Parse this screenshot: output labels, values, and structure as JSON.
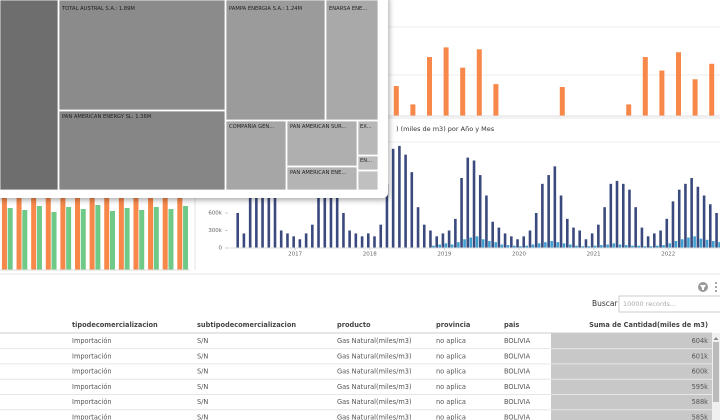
{
  "chart_data": [
    {
      "type": "bar",
      "categories": [
        null,
        null,
        null,
        null,
        null,
        null,
        null,
        null,
        null,
        null,
        null,
        null,
        null,
        null,
        null,
        null,
        null,
        null,
        null,
        null
      ],
      "series": [
        {
          "color": "#f7884a",
          "values": [
            31,
            12,
            61,
            71,
            50,
            69,
            33,
            0,
            0,
            0,
            30,
            0,
            0,
            0,
            12,
            61,
            47,
            66,
            38,
            54
          ]
        }
      ],
      "ylim": [
        0,
        120
      ]
    },
    {
      "type": "bar",
      "categories": [
        null,
        null,
        null,
        null,
        null,
        null,
        null,
        null,
        null,
        null,
        null,
        null,
        null
      ],
      "series": [
        {
          "color": "#f7884a",
          "values": [
            72,
            72,
            72,
            72,
            72,
            72,
            72,
            72,
            72,
            72,
            72,
            72,
            72
          ]
        },
        {
          "color": "#6fc987",
          "values": [
            62,
            60,
            64,
            58,
            63,
            61,
            65,
            59,
            62,
            60,
            63,
            61,
            64
          ]
        }
      ],
      "ylim": [
        0,
        72
      ]
    },
    {
      "type": "bar",
      "title": ") (miles de m3) por Año y Mes",
      "x": [
        2016.25,
        2016.333,
        2016.417,
        2016.5,
        2016.583,
        2016.667,
        2016.75,
        2016.833,
        2016.917,
        2017,
        2017.083,
        2017.167,
        2017.25,
        2017.333,
        2017.417,
        2017.5,
        2017.583,
        2017.667,
        2017.75,
        2017.833,
        2017.917,
        2018,
        2018.083,
        2018.167,
        2018.25,
        2018.333,
        2018.417,
        2018.5,
        2018.583,
        2018.667,
        2018.75,
        2018.833,
        2018.917,
        2019,
        2019.083,
        2019.167,
        2019.25,
        2019.333,
        2019.417,
        2019.5,
        2019.583,
        2019.667,
        2019.75,
        2019.833,
        2019.917,
        2020,
        2020.083,
        2020.167,
        2020.25,
        2020.333,
        2020.417,
        2020.5,
        2020.583,
        2020.667,
        2020.75,
        2020.833,
        2020.917,
        2021,
        2021.083,
        2021.167,
        2021.25,
        2021.333,
        2021.417,
        2021.5,
        2021.583,
        2021.667,
        2021.75,
        2021.833,
        2021.917,
        2022,
        2022.083,
        2022.167,
        2022.25,
        2022.333,
        2022.417,
        2022.5,
        2022.583,
        2022.667
      ],
      "series": [
        {
          "color": "#3b4a7e",
          "values": [
            600000,
            250000,
            1500000,
            1700000,
            1700000,
            1400000,
            900000,
            300000,
            250000,
            200000,
            150000,
            250000,
            400000,
            1400000,
            1700000,
            1500000,
            1200000,
            600000,
            300000,
            250000,
            200000,
            250000,
            200000,
            400000,
            1100000,
            1700000,
            1750000,
            1600000,
            1300000,
            700000,
            400000,
            300000,
            200000,
            250000,
            300000,
            500000,
            1200000,
            1550000,
            1500000,
            1250000,
            900000,
            450000,
            350000,
            250000,
            200000,
            150000,
            200000,
            300000,
            600000,
            1100000,
            1250000,
            1400000,
            900000,
            500000,
            350000,
            300000,
            150000,
            250000,
            400000,
            700000,
            1100000,
            1150000,
            1100000,
            1000000,
            700000,
            350000,
            200000,
            250000,
            300000,
            500000,
            800000,
            1000000,
            1100000,
            1200000,
            1050000,
            900000,
            750000,
            600000
          ]
        },
        {
          "color": "#3fa0d0",
          "values": [
            null,
            null,
            null,
            null,
            null,
            null,
            null,
            null,
            null,
            null,
            null,
            null,
            null,
            null,
            null,
            null,
            null,
            null,
            null,
            null,
            null,
            null,
            null,
            null,
            null,
            null,
            null,
            null,
            null,
            null,
            null,
            40000,
            60000,
            80000,
            60000,
            100000,
            150000,
            180000,
            200000,
            150000,
            120000,
            100000,
            60000,
            50000,
            40000,
            30000,
            40000,
            60000,
            80000,
            100000,
            120000,
            100000,
            80000,
            60000,
            40000,
            30000,
            30000,
            40000,
            50000,
            60000,
            80000,
            60000,
            50000,
            40000,
            40000,
            30000,
            30000,
            40000,
            50000,
            80000,
            120000,
            150000,
            180000,
            200000,
            160000,
            140000,
            120000,
            100000
          ]
        }
      ],
      "xlim": [
        2016.1,
        2022.72
      ],
      "xticks": [
        2017,
        2018,
        2019,
        2020,
        2021,
        2022
      ],
      "ylim": [
        0,
        1800000
      ],
      "yticks": [
        0,
        {
          "value": 300000,
          "label": "300k"
        },
        {
          "value": 600000,
          "label": "600k"
        }
      ]
    }
  ],
  "treemap": {
    "cells": [
      "TOTAL AUSTRAL S.A.: 1.89M",
      "PAMPA ENERGIA S.A.: 1.24M",
      "ENARSA ENE...",
      "PAN AMERICAN ENERGY SL: 1.36M",
      "COMPAÑIA GEN...",
      "PAN AMERICAN SUR...",
      "EX...",
      "EN...",
      "PAN AMERICAN ENE..."
    ]
  },
  "table": {
    "search_label": "Buscar",
    "search_placeholder": "10000 records...",
    "headers": [
      "tipodecomercializacion",
      "subtipodecomercializacion",
      "producto",
      "provincia",
      "pais",
      "Suma de Cantidad(miles de m3)"
    ],
    "rows": [
      [
        "Importación",
        "S/N",
        "Gas Natural(miles/m3)",
        "no aplica",
        "BOLIVIA",
        "604k"
      ],
      [
        "Importación",
        "S/N",
        "Gas Natural(miles/m3)",
        "no aplica",
        "BOLIVIA",
        "601k"
      ],
      [
        "Importación",
        "S/N",
        "Gas Natural(miles/m3)",
        "no aplica",
        "BOLIVIA",
        "600k"
      ],
      [
        "Importación",
        "S/N",
        "Gas Natural(miles/m3)",
        "no aplica",
        "BOLIVIA",
        "595k"
      ],
      [
        "Importación",
        "S/N",
        "Gas Natural(miles/m3)",
        "no aplica",
        "BOLIVIA",
        "588k"
      ],
      [
        "Importación",
        "S/N",
        "Gas Natural(miles/m3)",
        "no aplica",
        "BOLIVIA",
        "585k"
      ]
    ]
  }
}
